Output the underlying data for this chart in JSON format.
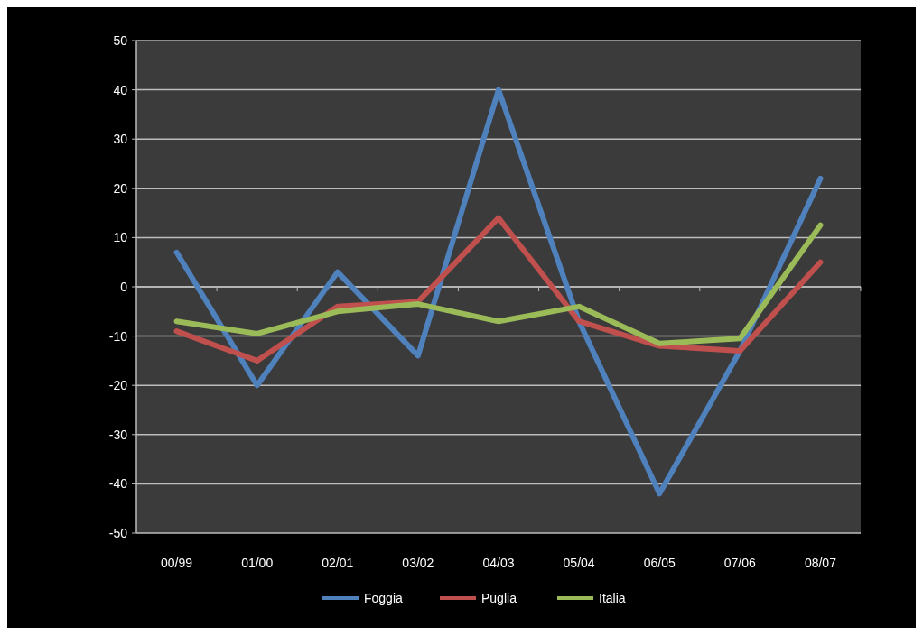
{
  "chart_data": {
    "type": "line",
    "categories": [
      "00/99",
      "01/00",
      "02/01",
      "03/02",
      "04/03",
      "05/04",
      "06/05",
      "07/06",
      "08/07"
    ],
    "series": [
      {
        "name": "Foggia",
        "color": "#4f81bd",
        "values": [
          7,
          -20,
          3,
          -14,
          40,
          -7,
          -42,
          -13,
          22
        ]
      },
      {
        "name": "Puglia",
        "color": "#c0504d",
        "values": [
          -9,
          -15,
          -4,
          -3,
          14,
          -7,
          -12,
          -13,
          5
        ]
      },
      {
        "name": "Italia",
        "color": "#9bbb59",
        "values": [
          -7,
          -9.5,
          -5,
          -3.5,
          -7,
          -4,
          -11.5,
          -10.5,
          12.5
        ]
      }
    ],
    "ylim": [
      -50,
      50
    ],
    "yticks": [
      -50,
      -40,
      -30,
      -20,
      -10,
      0,
      10,
      20,
      30,
      40,
      50
    ],
    "grid": "y",
    "legend": "bottom",
    "marker": "none",
    "line_style": "solid"
  }
}
